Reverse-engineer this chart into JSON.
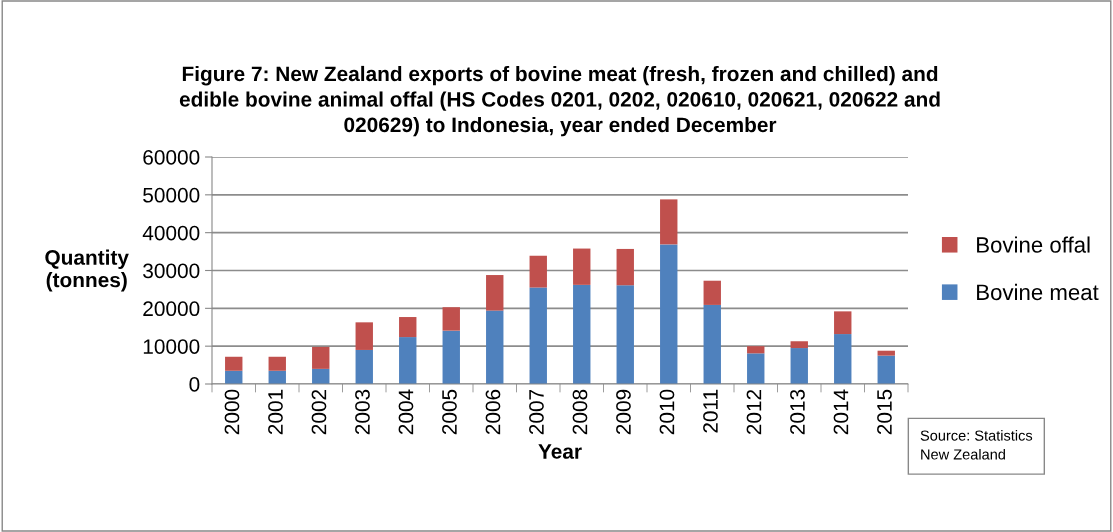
{
  "chart_data": {
    "type": "bar",
    "stacked": true,
    "title": "Figure 7: New Zealand exports of bovine meat (fresh, frozen and chilled) and\nedible bovine animal offal (HS Codes 0201, 0202, 020610, 020621, 020622 and\n020629) to Indonesia, year ended December",
    "xlabel": "Year",
    "ylabel": "Quantity\n(tonnes)",
    "categories": [
      "2000",
      "2001",
      "2002",
      "2003",
      "2004",
      "2005",
      "2006",
      "2007",
      "2008",
      "2009",
      "2010",
      "2011",
      "2012",
      "2013",
      "2014",
      "2015"
    ],
    "series": [
      {
        "name": "Bovine meat",
        "color": "#4f81bd",
        "values": [
          3500,
          3500,
          4000,
          9000,
          12400,
          14100,
          19400,
          25500,
          26200,
          26100,
          36900,
          20900,
          8100,
          9500,
          13200,
          7500
        ]
      },
      {
        "name": "Bovine offal",
        "color": "#c0504d",
        "values": [
          3700,
          3700,
          5800,
          7300,
          5300,
          6200,
          9400,
          8400,
          9600,
          9600,
          11900,
          6400,
          1900,
          1800,
          6000,
          1300
        ]
      }
    ],
    "ylim": [
      0,
      60000
    ],
    "yticks": [
      0,
      10000,
      20000,
      30000,
      40000,
      50000,
      60000
    ],
    "grid": "y",
    "legend": "right",
    "annotations": [
      "Source: Statistics\nNew Zealand"
    ]
  }
}
